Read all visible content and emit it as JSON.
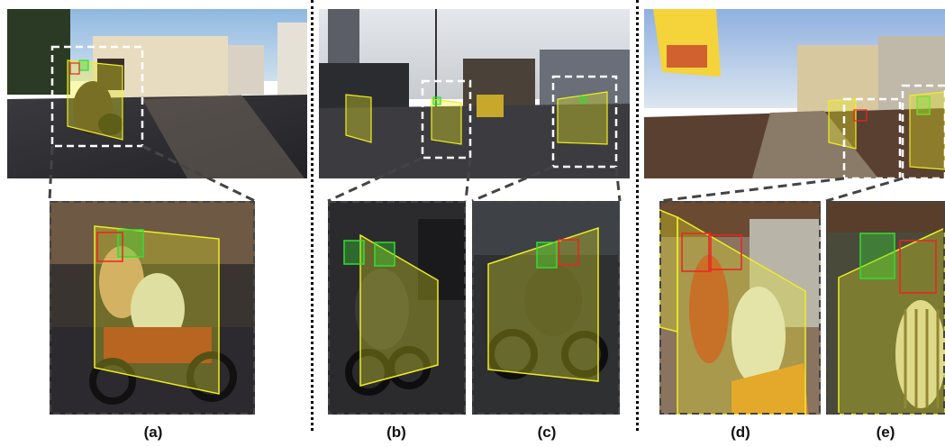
{
  "figure": {
    "captions": [
      "(a)",
      "(b)",
      "(c)",
      "(d)",
      "(e)"
    ],
    "colors": {
      "helmet_box": "#33dd33",
      "head_box": "#ee2222",
      "motorcycle_box": "#eeee22",
      "zoom_frame": "#ffffff",
      "connector": "#444444"
    }
  }
}
